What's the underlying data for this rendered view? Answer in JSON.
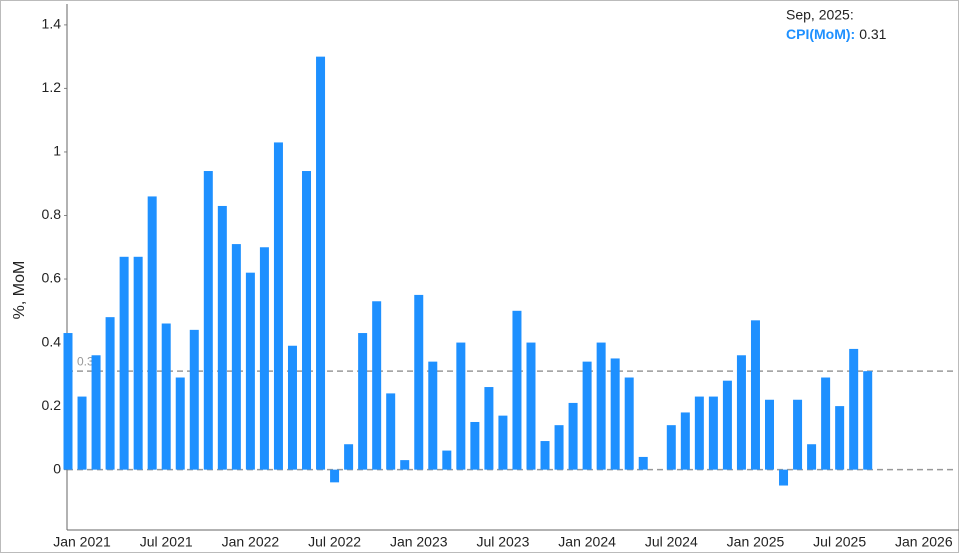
{
  "chart_data": {
    "type": "bar",
    "y_label": "%, MoM",
    "categories": [
      null,
      "Jan 2021",
      null,
      null,
      null,
      null,
      null,
      "Jul 2021",
      null,
      null,
      null,
      null,
      null,
      "Jan 2022",
      null,
      null,
      null,
      null,
      null,
      "Jul 2022",
      null,
      null,
      null,
      null,
      null,
      "Jan 2023",
      null,
      null,
      null,
      null,
      null,
      "Jul 2023",
      null,
      null,
      null,
      null,
      null,
      "Jan 2024",
      null,
      null,
      null,
      null,
      null,
      "Jul 2024",
      null,
      null,
      null,
      null,
      null,
      "Jan 2025",
      null,
      null,
      null,
      null,
      null,
      "Jul 2025",
      null,
      null,
      null,
      null,
      null,
      "Jan 2026"
    ],
    "series": [
      {
        "name": "CPI(MoM)",
        "color": "#1e90ff",
        "values": [
          0.43,
          0.23,
          0.36,
          0.48,
          0.67,
          0.67,
          0.86,
          0.46,
          0.29,
          0.44,
          0.94,
          0.83,
          0.71,
          0.62,
          0.7,
          1.03,
          0.39,
          0.94,
          1.3,
          -0.04,
          0.08,
          0.43,
          0.53,
          0.24,
          0.03,
          0.55,
          0.34,
          0.06,
          0.4,
          0.15,
          0.26,
          0.17,
          0.5,
          0.4,
          0.09,
          0.14,
          0.21,
          0.34,
          0.4,
          0.35,
          0.29,
          0.04,
          0.0,
          0.14,
          0.18,
          0.23,
          0.23,
          0.28,
          0.36,
          0.47,
          0.22,
          -0.05,
          0.22,
          0.08,
          0.29,
          0.2,
          0.38,
          0.31,
          null,
          null,
          null,
          null
        ]
      }
    ],
    "ylim": [
      -0.19,
      1.45
    ],
    "yticks": [
      0,
      0.2,
      0.4,
      0.6,
      0.8,
      1,
      1.2,
      1.4
    ],
    "reference_line": {
      "value": 0.31
    },
    "tooltip": {
      "title": "Sep, 2025:",
      "name": "CPI(MoM):",
      "value": 0.31
    }
  }
}
